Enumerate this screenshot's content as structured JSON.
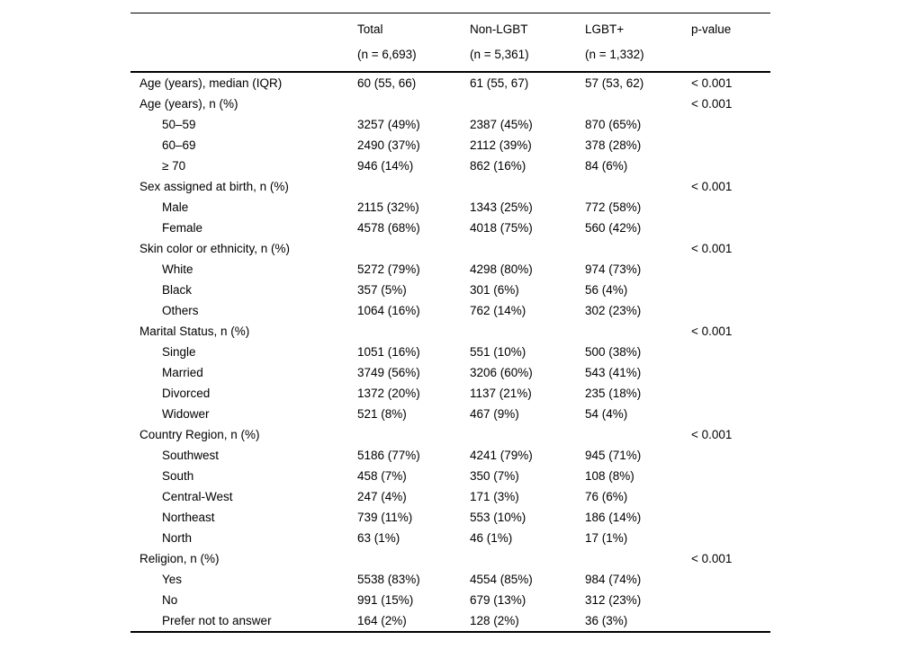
{
  "colors": {
    "background": "#ffffff",
    "text": "#000000",
    "rule": "#000000"
  },
  "table": {
    "header": {
      "total": {
        "line1": "Total",
        "line2": "(n = 6,693)"
      },
      "nonlgbt": {
        "line1": "Non-LGBT",
        "line2": "(n = 5,361)"
      },
      "lgbt": {
        "line1": "LGBT+",
        "line2": "(n = 1,332)"
      },
      "pvalue": "p-value"
    },
    "rows": [
      {
        "label": "Age (years), median (IQR)",
        "indent": 0,
        "total": "60 (55, 66)",
        "nonlgbt": "61 (55, 67)",
        "lgbt": "57 (53, 62)",
        "p": "< 0.001"
      },
      {
        "label": "Age (years), n (%)",
        "indent": 0,
        "total": "",
        "nonlgbt": "",
        "lgbt": "",
        "p": "< 0.001"
      },
      {
        "label": "50–59",
        "indent": 1,
        "total": "3257 (49%)",
        "nonlgbt": "2387 (45%)",
        "lgbt": "870 (65%)",
        "p": ""
      },
      {
        "label": "60–69",
        "indent": 1,
        "total": "2490 (37%)",
        "nonlgbt": "2112 (39%)",
        "lgbt": "378 (28%)",
        "p": ""
      },
      {
        "label": "≥ 70",
        "indent": 1,
        "total": "946 (14%)",
        "nonlgbt": "862 (16%)",
        "lgbt": "84 (6%)",
        "p": ""
      },
      {
        "label": "Sex assigned at birth, n (%)",
        "indent": 0,
        "total": "",
        "nonlgbt": "",
        "lgbt": "",
        "p": "< 0.001"
      },
      {
        "label": "Male",
        "indent": 1,
        "total": "2115 (32%)",
        "nonlgbt": "1343 (25%)",
        "lgbt": "772 (58%)",
        "p": ""
      },
      {
        "label": "Female",
        "indent": 1,
        "total": "4578 (68%)",
        "nonlgbt": "4018 (75%)",
        "lgbt": "560 (42%)",
        "p": ""
      },
      {
        "label": "Skin color or ethnicity, n (%)",
        "indent": 0,
        "total": "",
        "nonlgbt": "",
        "lgbt": "",
        "p": "< 0.001"
      },
      {
        "label": "White",
        "indent": 1,
        "total": "5272 (79%)",
        "nonlgbt": "4298 (80%)",
        "lgbt": "974 (73%)",
        "p": ""
      },
      {
        "label": "Black",
        "indent": 1,
        "total": "357 (5%)",
        "nonlgbt": "301 (6%)",
        "lgbt": "56 (4%)",
        "p": ""
      },
      {
        "label": "Others",
        "indent": 1,
        "total": "1064 (16%)",
        "nonlgbt": "762 (14%)",
        "lgbt": "302 (23%)",
        "p": ""
      },
      {
        "label": "Marital Status, n (%)",
        "indent": 0,
        "total": "",
        "nonlgbt": "",
        "lgbt": "",
        "p": "< 0.001"
      },
      {
        "label": "Single",
        "indent": 1,
        "total": "1051 (16%)",
        "nonlgbt": "551 (10%)",
        "lgbt": "500 (38%)",
        "p": ""
      },
      {
        "label": "Married",
        "indent": 1,
        "total": "3749 (56%)",
        "nonlgbt": "3206 (60%)",
        "lgbt": "543 (41%)",
        "p": ""
      },
      {
        "label": "Divorced",
        "indent": 1,
        "total": "1372 (20%)",
        "nonlgbt": "1137 (21%)",
        "lgbt": "235 (18%)",
        "p": ""
      },
      {
        "label": "Widower",
        "indent": 1,
        "total": "521 (8%)",
        "nonlgbt": "467 (9%)",
        "lgbt": "54 (4%)",
        "p": ""
      },
      {
        "label": "Country Region, n (%)",
        "indent": 0,
        "total": "",
        "nonlgbt": "",
        "lgbt": "",
        "p": "< 0.001"
      },
      {
        "label": "Southwest",
        "indent": 1,
        "total": "5186 (77%)",
        "nonlgbt": "4241 (79%)",
        "lgbt": "945 (71%)",
        "p": ""
      },
      {
        "label": "South",
        "indent": 1,
        "total": "458 (7%)",
        "nonlgbt": "350 (7%)",
        "lgbt": "108 (8%)",
        "p": ""
      },
      {
        "label": "Central-West",
        "indent": 1,
        "total": "247 (4%)",
        "nonlgbt": "171 (3%)",
        "lgbt": "76 (6%)",
        "p": ""
      },
      {
        "label": "Northeast",
        "indent": 1,
        "total": "739 (11%)",
        "nonlgbt": "553 (10%)",
        "lgbt": "186 (14%)",
        "p": ""
      },
      {
        "label": "North",
        "indent": 1,
        "total": "63 (1%)",
        "nonlgbt": "46 (1%)",
        "lgbt": "17 (1%)",
        "p": ""
      },
      {
        "label": "Religion, n (%)",
        "indent": 0,
        "total": "",
        "nonlgbt": "",
        "lgbt": "",
        "p": "< 0.001"
      },
      {
        "label": "Yes",
        "indent": 1,
        "total": "5538 (83%)",
        "nonlgbt": "4554 (85%)",
        "lgbt": "984 (74%)",
        "p": ""
      },
      {
        "label": "No",
        "indent": 1,
        "total": "991 (15%)",
        "nonlgbt": "679 (13%)",
        "lgbt": "312 (23%)",
        "p": ""
      },
      {
        "label": "Prefer not to answer",
        "indent": 1,
        "total": "164 (2%)",
        "nonlgbt": "128 (2%)",
        "lgbt": "36 (3%)",
        "p": ""
      }
    ]
  }
}
